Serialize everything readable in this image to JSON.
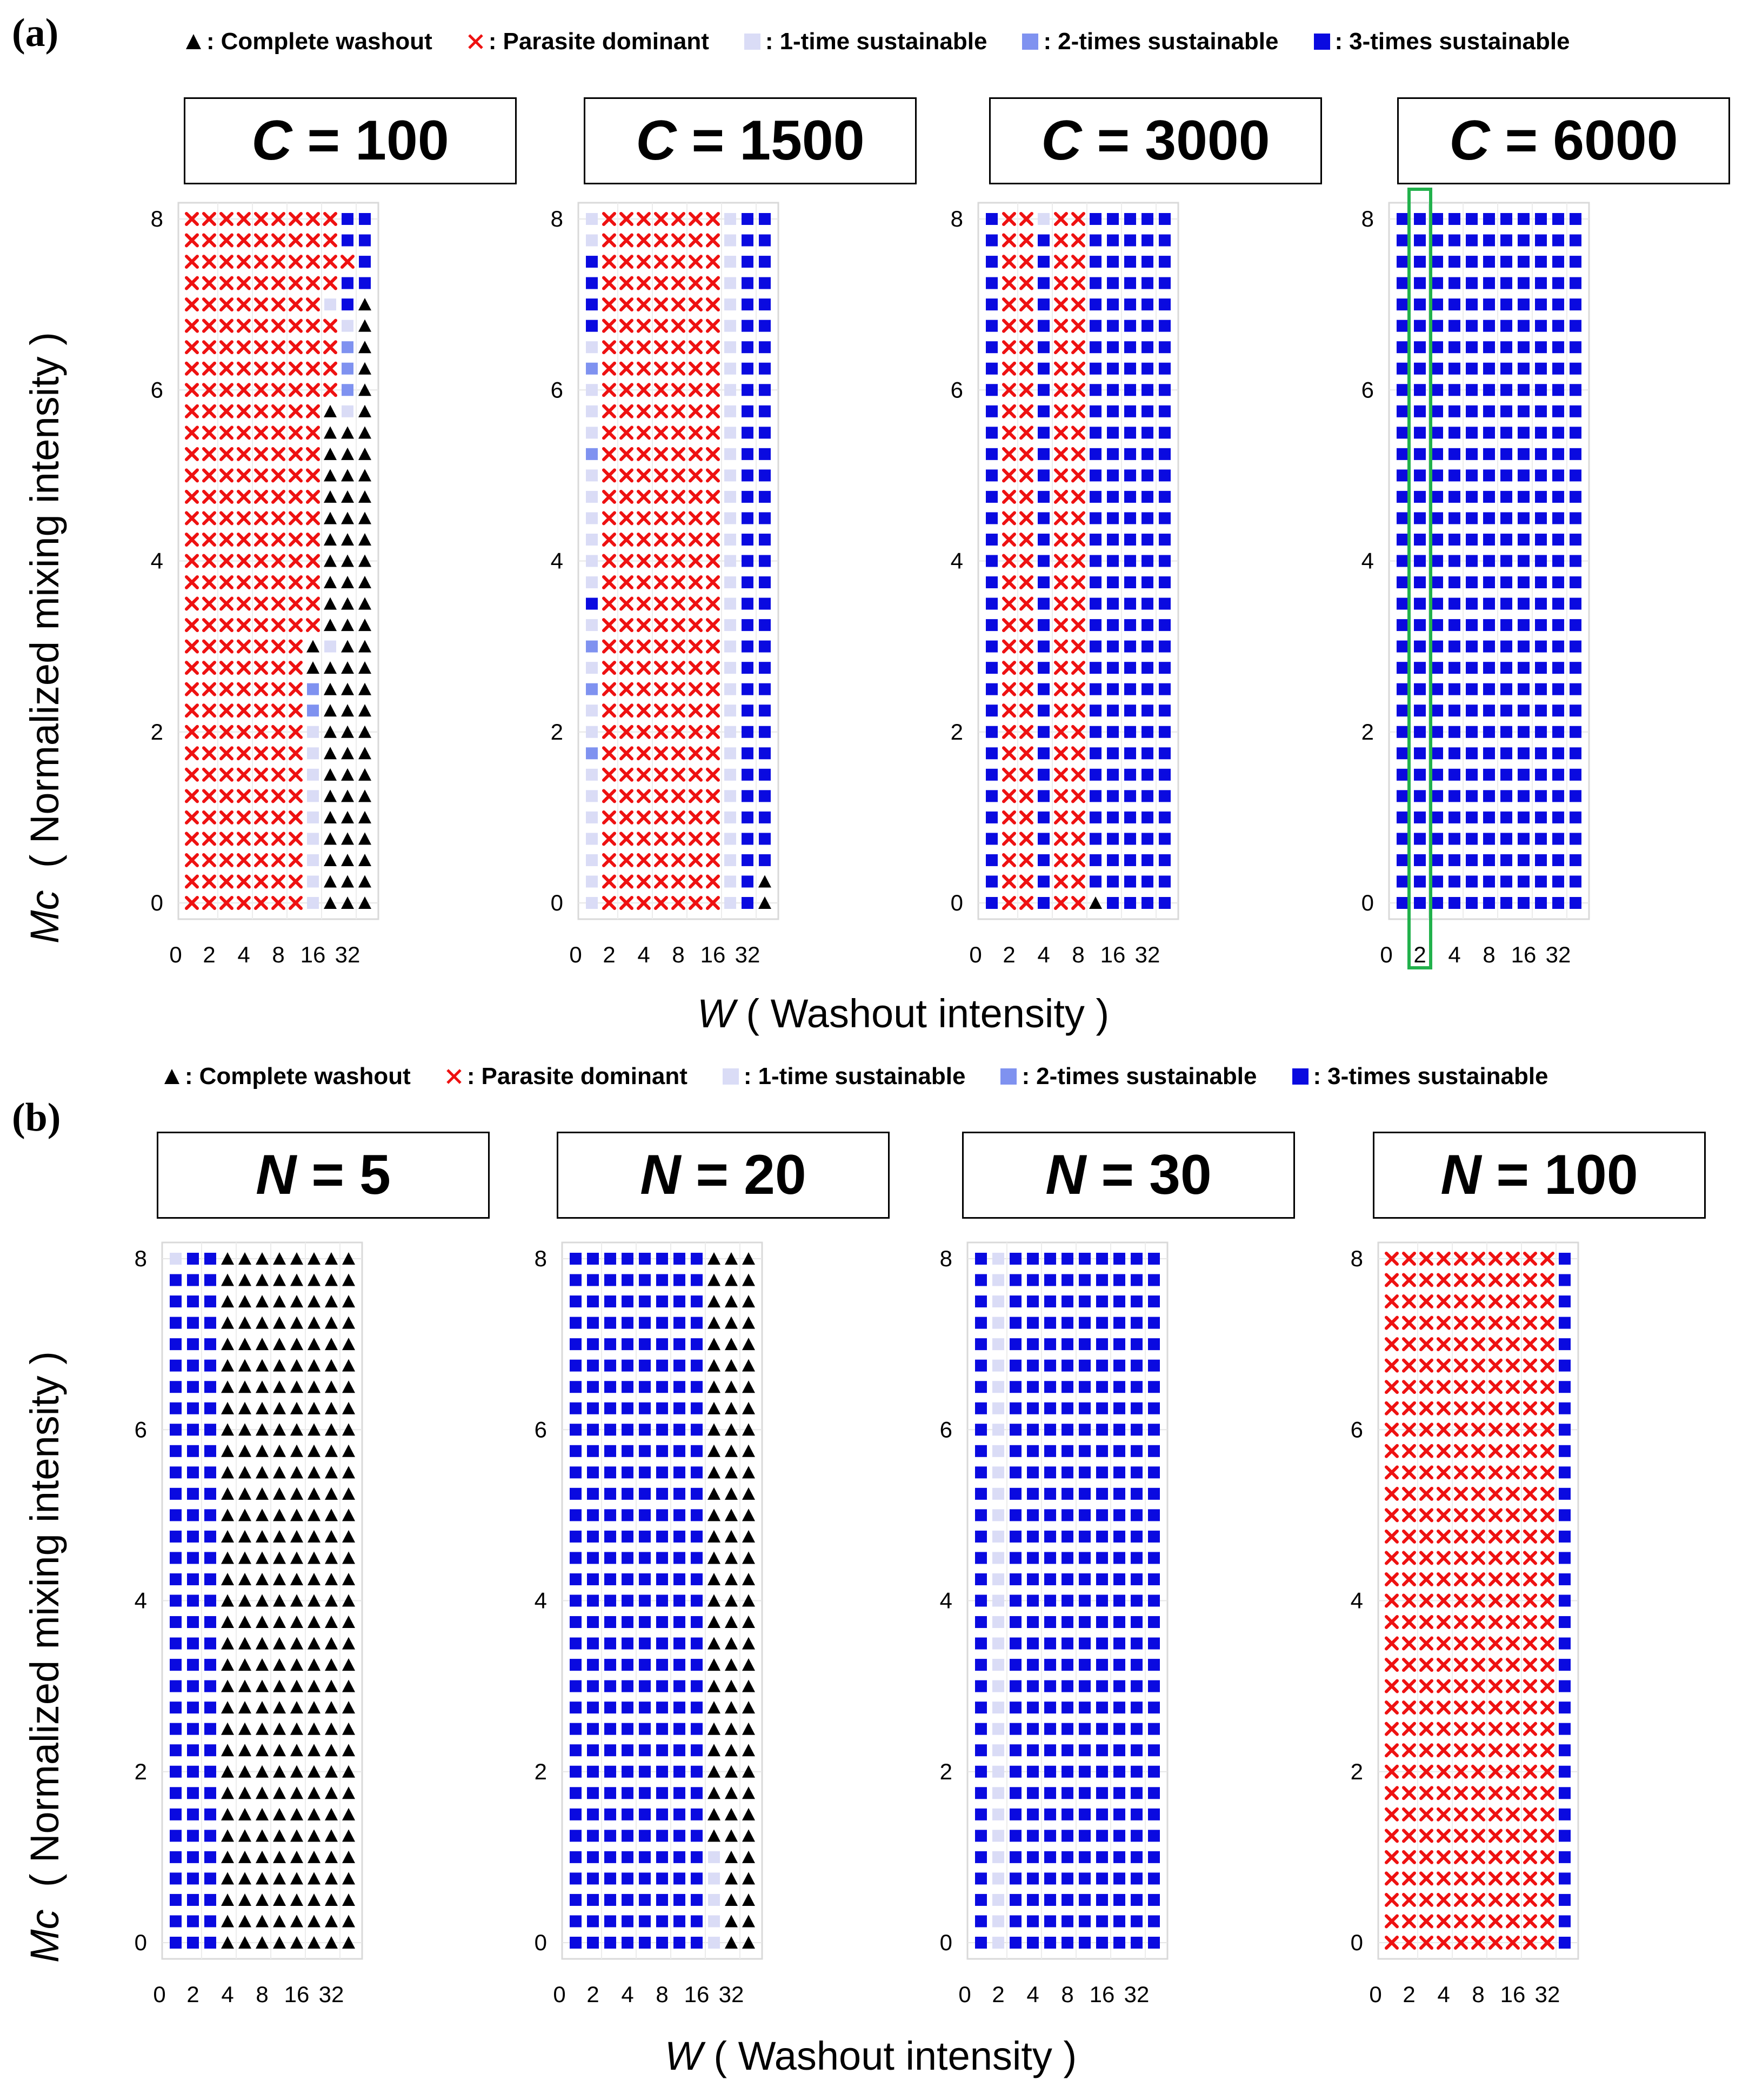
{
  "panels": {
    "a": "(a)",
    "b": "(b)"
  },
  "legend": {
    "items": [
      {
        "marker": "triangle",
        "symbol": "▲",
        "label": "Complete washout",
        "color": "#000000"
      },
      {
        "marker": "cross",
        "symbol": "✕",
        "label": "Parasite dominant",
        "color": "#ee1111"
      },
      {
        "marker": "square",
        "label": "1-time sustainable",
        "color": "#dadcf6"
      },
      {
        "marker": "square",
        "label": "2-times sustainable",
        "color": "#7f92f0"
      },
      {
        "marker": "square",
        "label": "3-times sustainable",
        "color": "#0a0ae0"
      }
    ],
    "separator": ":"
  },
  "axes": {
    "ylabel_symbol": "Mc",
    "ylabel_text": "( Normalized mixing intensity )",
    "xlabel_symbol": "W",
    "xlabel_text": "( Washout intensity )"
  },
  "chart_data": [
    {
      "type": "scatter",
      "row": "a",
      "title_var": "C",
      "title_val": "100",
      "title_eq": "=",
      "x_ticks": [
        "0",
        "2",
        "4",
        "8",
        "16",
        "32"
      ],
      "y_ticks": [
        "0",
        "2",
        "4",
        "6",
        "8"
      ],
      "ylim": [
        0,
        8
      ],
      "highlight_column": null
    },
    {
      "type": "scatter",
      "row": "a",
      "title_var": "C",
      "title_val": "1500",
      "title_eq": "=",
      "x_ticks": [
        "0",
        "2",
        "4",
        "8",
        "16",
        "32"
      ],
      "y_ticks": [
        "0",
        "2",
        "4",
        "6",
        "8"
      ],
      "ylim": [
        0,
        8
      ],
      "highlight_column": null
    },
    {
      "type": "scatter",
      "row": "a",
      "title_var": "C",
      "title_val": "3000",
      "title_eq": "=",
      "x_ticks": [
        "0",
        "2",
        "4",
        "8",
        "16",
        "32"
      ],
      "y_ticks": [
        "0",
        "2",
        "4",
        "6",
        "8"
      ],
      "ylim": [
        0,
        8
      ],
      "highlight_column": null
    },
    {
      "type": "scatter",
      "row": "a",
      "title_var": "C",
      "title_val": "6000",
      "title_eq": "=",
      "x_ticks": [
        "0",
        "2",
        "4",
        "8",
        "16",
        "32"
      ],
      "y_ticks": [
        "0",
        "2",
        "4",
        "6",
        "8"
      ],
      "ylim": [
        0,
        8
      ],
      "highlight_column": "2"
    },
    {
      "type": "scatter",
      "row": "b",
      "title_var": "N",
      "title_val": "5",
      "title_eq": "=",
      "x_ticks": [
        "0",
        "2",
        "4",
        "8",
        "16",
        "32"
      ],
      "y_ticks": [
        "0",
        "2",
        "4",
        "6",
        "8"
      ],
      "ylim": [
        0,
        8
      ],
      "highlight_column": null
    },
    {
      "type": "scatter",
      "row": "b",
      "title_var": "N",
      "title_val": "20",
      "title_eq": "=",
      "x_ticks": [
        "0",
        "2",
        "4",
        "8",
        "16",
        "32"
      ],
      "y_ticks": [
        "0",
        "2",
        "4",
        "6",
        "8"
      ],
      "ylim": [
        0,
        8
      ],
      "highlight_column": null
    },
    {
      "type": "scatter",
      "row": "b",
      "title_var": "N",
      "title_val": "30",
      "title_eq": "=",
      "x_ticks": [
        "0",
        "2",
        "4",
        "8",
        "16",
        "32"
      ],
      "y_ticks": [
        "0",
        "2",
        "4",
        "6",
        "8"
      ],
      "ylim": [
        0,
        8
      ],
      "highlight_column": null
    },
    {
      "type": "scatter",
      "row": "b",
      "title_var": "N",
      "title_val": "100",
      "title_eq": "=",
      "x_ticks": [
        "0",
        "2",
        "4",
        "8",
        "16",
        "32"
      ],
      "y_ticks": [
        "0",
        "2",
        "4",
        "6",
        "8"
      ],
      "ylim": [
        0,
        8
      ],
      "highlight_column": null
    }
  ],
  "grid_def": {
    "columns": 11,
    "rows": 33,
    "row_step": 0.25,
    "category_codes": {
      "0": "complete washout",
      "1": "parasite dominant",
      "2": "1-time sustainable",
      "3": "2-times sustainable",
      "4": "3-times sustainable"
    },
    "grids": [
      [
        "11111111144",
        "11111111144",
        "11111111114",
        "11111111144",
        "11111111240",
        "11111111120",
        "11111111130",
        "11111111130",
        "11111111130",
        "11111111020",
        "11111111000",
        "11111111000",
        "11111111000",
        "11111111000",
        "11111111000",
        "11111111000",
        "11111111000",
        "11111111000",
        "11111111000",
        "11111111000",
        "11111110200",
        "11111110000",
        "11111113000",
        "11111113000",
        "11111112000",
        "11111112000",
        "11111112000",
        "11111112000",
        "11111112000",
        "11111112000",
        "11111112000",
        "11111112000",
        "11111112000"
      ],
      [
        "21111111244",
        "21111111244",
        "41111111244",
        "41111111244",
        "41111111244",
        "41111111244",
        "21111111244",
        "31111111244",
        "21111111244",
        "21111111244",
        "21111111244",
        "31111111244",
        "21111111244",
        "21111111244",
        "21111111244",
        "21111111244",
        "21111111244",
        "21111111244",
        "41111111244",
        "21111111244",
        "31111111244",
        "21111111244",
        "31111111244",
        "21111111244",
        "21111111244",
        "31111111244",
        "21111111244",
        "21111111244",
        "21111111244",
        "21111111244",
        "21111111244",
        "21111111240",
        "21111111240"
      ],
      [
        "41121144444",
        "41141144444",
        "41141144444",
        "41141144444",
        "41141144444",
        "41141144444",
        "41141144444",
        "41141144444",
        "41141144444",
        "41141144444",
        "41141144444",
        "41141144444",
        "41141144444",
        "41141144444",
        "41141144444",
        "41141144444",
        "41141144444",
        "41141144444",
        "41141144444",
        "41141144444",
        "41141144444",
        "41141144444",
        "41141144444",
        "41141144444",
        "41141144444",
        "41141144444",
        "41141144444",
        "41141144444",
        "41141144444",
        "41141144444",
        "41141144444",
        "41141144444",
        "41141104444"
      ],
      [
        "44444444444",
        "44444444444",
        "44444444444",
        "44444444444",
        "44444444444",
        "44444444444",
        "44444444444",
        "44444444444",
        "44444444444",
        "44444444444",
        "44444444444",
        "44444444444",
        "44444444444",
        "44444444444",
        "44444444444",
        "44444444444",
        "44444444444",
        "44444444444",
        "44444444444",
        "44444444444",
        "44444444444",
        "44444444444",
        "44444444444",
        "44444444444",
        "44444444444",
        "44444444444",
        "44444444444",
        "44444444444",
        "44444444444",
        "44444444444",
        "44444444444",
        "44444444444",
        "44444444444"
      ],
      [
        "24400000000",
        "44400000000",
        "44400000000",
        "44400000000",
        "44400000000",
        "44400000000",
        "44400000000",
        "44400000000",
        "44400000000",
        "44400000000",
        "44400000000",
        "44400000000",
        "44400000000",
        "44400000000",
        "44400000000",
        "44400000000",
        "44400000000",
        "44400000000",
        "44400000000",
        "44400000000",
        "44400000000",
        "44400000000",
        "44400000000",
        "44400000000",
        "44400000000",
        "44400000000",
        "44400000000",
        "44400000000",
        "44400000000",
        "44400000000",
        "44400000000",
        "44400000000",
        "44400000000"
      ],
      [
        "44444444000",
        "44444444000",
        "44444444000",
        "44444444000",
        "44444444000",
        "44444444000",
        "44444444000",
        "44444444000",
        "44444444000",
        "44444444000",
        "44444444000",
        "44444444000",
        "44444444000",
        "44444444000",
        "44444444000",
        "44444444000",
        "44444444000",
        "44444444000",
        "44444444000",
        "44444444000",
        "44444444000",
        "44444444000",
        "44444444000",
        "44444444000",
        "44444444000",
        "44444444000",
        "44444444000",
        "44444444000",
        "44444444200",
        "44444444200",
        "44444444200",
        "44444444200",
        "44444444200"
      ],
      [
        "42444444444",
        "42444444444",
        "42444444444",
        "42444444444",
        "42444444444",
        "42444444444",
        "42444444444",
        "42444444444",
        "42444444444",
        "42444444444",
        "42444444444",
        "42444444444",
        "42444444444",
        "42444444444",
        "42444444444",
        "42444444444",
        "42444444444",
        "42444444444",
        "42444444444",
        "42444444444",
        "42444444444",
        "42444444444",
        "42444444444",
        "42444444444",
        "42444444444",
        "42444444444",
        "42444444444",
        "42444444444",
        "42444444444",
        "42444444444",
        "42444444444",
        "42444444444",
        "42444444444"
      ],
      [
        "11111111114",
        "11111111114",
        "11111111114",
        "11111111114",
        "11111111114",
        "11111111114",
        "11111111114",
        "11111111114",
        "11111111114",
        "11111111114",
        "11111111114",
        "11111111114",
        "11111111114",
        "11111111114",
        "11111111114",
        "11111111114",
        "11111111114",
        "11111111114",
        "11111111114",
        "11111111114",
        "11111111114",
        "11111111114",
        "11111111114",
        "11111111114",
        "11111111114",
        "11111111114",
        "11111111114",
        "11111111114",
        "11111111114",
        "11111111114",
        "11111111114",
        "11111111114",
        "11111111114"
      ]
    ]
  }
}
